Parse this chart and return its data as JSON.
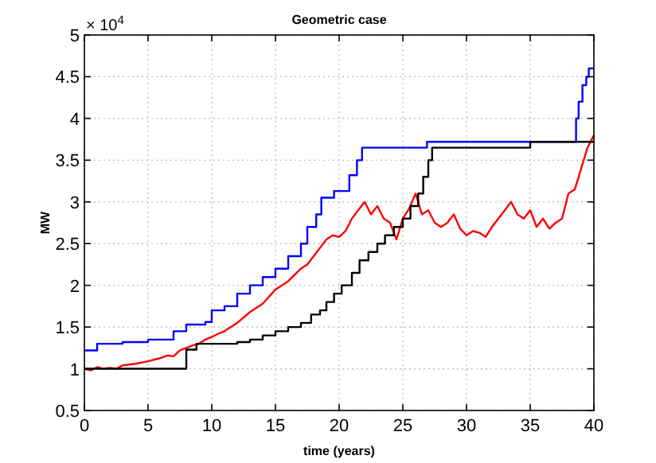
{
  "chart_data": {
    "type": "line",
    "title": "Geometric case",
    "xlabel": "time (years)",
    "ylabel": "MW",
    "annotations": [
      "× 10$^{4}$"
    ],
    "xlim": [
      0,
      40
    ],
    "xticks": [
      0,
      5,
      10,
      15,
      20,
      25,
      30,
      35,
      40
    ],
    "ylim": [
      0.5,
      5
    ],
    "yticks": [
      0.5,
      1,
      1.5,
      2,
      2.5,
      3,
      3.5,
      4,
      4.5,
      5
    ],
    "grid": true,
    "marker": "none",
    "line_style": "solid",
    "series": [
      {
        "type": "step",
        "color": "#0000ff",
        "x": [
          0,
          1,
          3,
          5,
          7,
          8,
          9.5,
          10,
          11,
          12,
          13,
          14,
          15,
          16,
          17,
          17.5,
          18.2,
          18.6,
          19.6,
          20.8,
          21.4,
          21.8,
          26.9,
          38.6,
          38.8,
          39.1,
          39.4,
          39.6,
          40
        ],
        "values": [
          1.22,
          1.3,
          1.32,
          1.35,
          1.45,
          1.53,
          1.56,
          1.7,
          1.75,
          1.9,
          2.0,
          2.1,
          2.2,
          2.35,
          2.5,
          2.7,
          2.85,
          3.05,
          3.13,
          3.32,
          3.5,
          3.65,
          3.72,
          4.0,
          4.2,
          4.4,
          4.5,
          4.6,
          4.6
        ]
      },
      {
        "color": "#ff0000",
        "x": [
          0,
          0.5,
          1,
          1.5,
          2,
          2.5,
          3,
          4,
          5,
          5.5,
          6,
          6.5,
          7,
          7.5,
          8,
          8.5,
          9,
          9.5,
          10,
          10.5,
          11,
          12,
          13,
          14,
          15,
          16,
          17,
          17.5,
          18,
          18.5,
          19,
          19.5,
          20,
          20.5,
          21,
          21.5,
          22,
          22.5,
          23,
          23.5,
          24,
          24.5,
          25,
          25.5,
          26,
          26.5,
          27,
          27.5,
          28,
          28.5,
          29,
          29.5,
          30,
          30.5,
          31,
          31.5,
          32,
          32.5,
          33,
          33.5,
          34,
          34.5,
          35,
          35.5,
          36,
          36.5,
          37,
          37.5,
          38,
          38.5,
          39,
          39.5,
          40
        ],
        "values": [
          1.0,
          0.98,
          1.02,
          1.0,
          1.01,
          1.0,
          1.04,
          1.06,
          1.09,
          1.11,
          1.13,
          1.16,
          1.15,
          1.22,
          1.25,
          1.28,
          1.3,
          1.35,
          1.38,
          1.42,
          1.45,
          1.55,
          1.68,
          1.78,
          1.95,
          2.05,
          2.2,
          2.25,
          2.35,
          2.45,
          2.55,
          2.6,
          2.58,
          2.65,
          2.8,
          2.9,
          3.0,
          2.85,
          2.95,
          2.8,
          2.75,
          2.55,
          2.8,
          2.92,
          3.1,
          2.85,
          2.9,
          2.75,
          2.7,
          2.75,
          2.85,
          2.68,
          2.6,
          2.65,
          2.63,
          2.58,
          2.7,
          2.8,
          2.9,
          3.0,
          2.85,
          2.8,
          2.9,
          2.7,
          2.8,
          2.68,
          2.75,
          2.8,
          3.1,
          3.15,
          3.4,
          3.65,
          3.8
        ]
      },
      {
        "type": "step",
        "color": "#000000",
        "x": [
          0,
          8,
          8.8,
          12,
          13,
          14,
          15,
          16,
          17,
          17.8,
          18.5,
          19,
          19.6,
          20.2,
          21,
          21.6,
          22.3,
          23,
          23.6,
          24.3,
          25,
          25.6,
          26.2,
          26.6,
          27,
          27.3,
          35,
          40
        ],
        "values": [
          1.0,
          1.23,
          1.3,
          1.32,
          1.35,
          1.4,
          1.45,
          1.5,
          1.55,
          1.65,
          1.7,
          1.8,
          1.9,
          2.0,
          2.15,
          2.3,
          2.4,
          2.5,
          2.6,
          2.7,
          2.8,
          2.95,
          3.1,
          3.3,
          3.5,
          3.65,
          3.72,
          3.72
        ]
      }
    ]
  }
}
